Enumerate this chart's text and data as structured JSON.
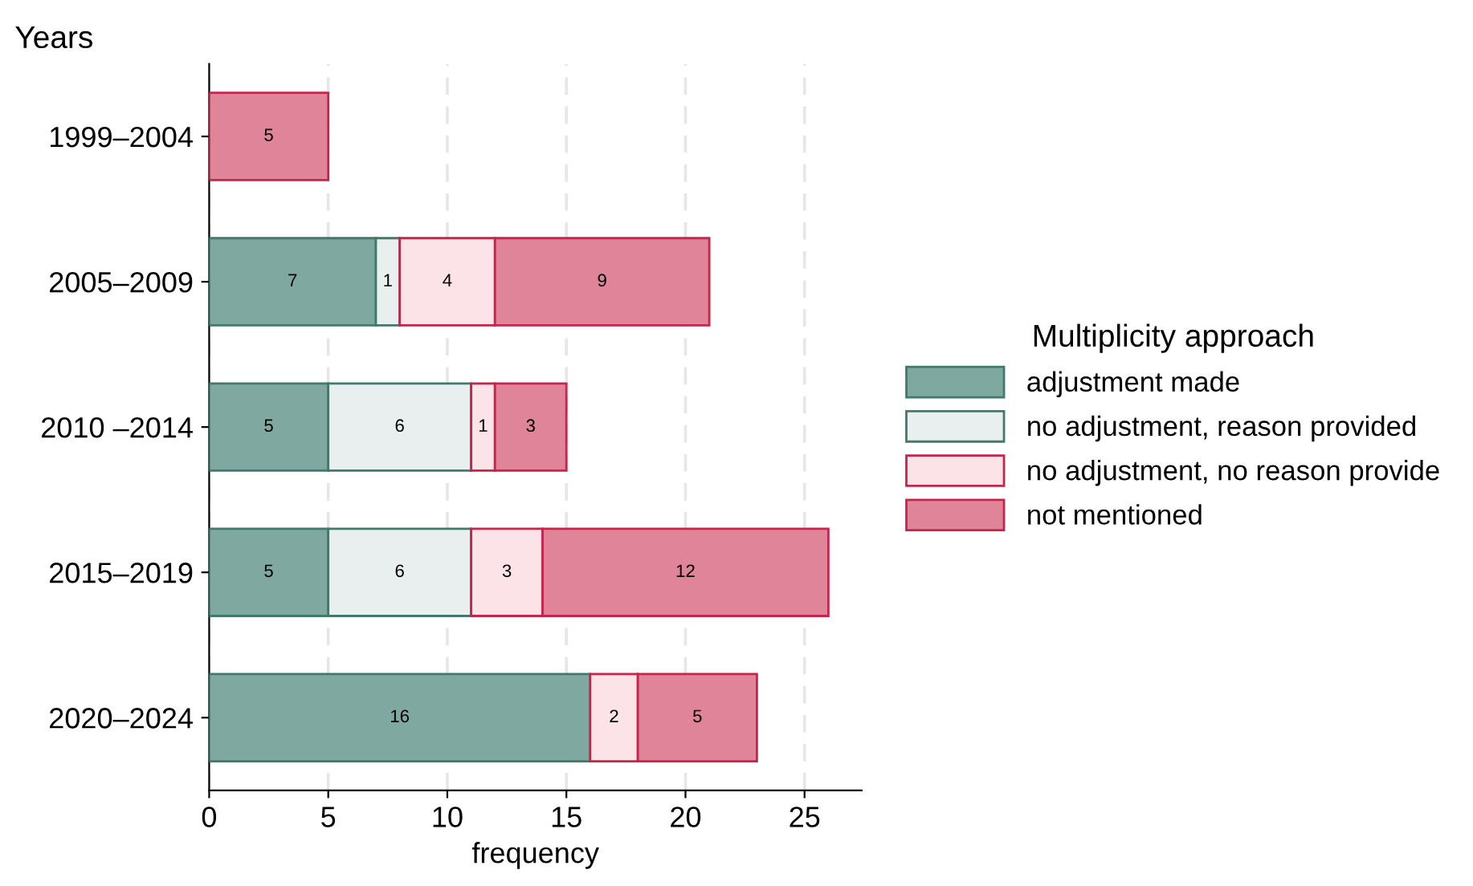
{
  "chart_data": {
    "type": "bar",
    "orientation": "horizontal",
    "stacked": true,
    "ylabel": "Years",
    "xlabel": "frequency",
    "legend_title": "Multiplicity approach",
    "categories": [
      "1999–2004",
      "2005–2009",
      "2010 –2014",
      "2015–2019",
      "2020–2024"
    ],
    "series": [
      {
        "name": "adjustment made",
        "color": "#7fa8a0",
        "values": [
          null,
          7,
          5,
          5,
          16
        ]
      },
      {
        "name": "no adjustment, reason provided",
        "color": "#e8efee",
        "values": [
          null,
          1,
          6,
          6,
          null
        ]
      },
      {
        "name": "no adjustment, no reason provide",
        "color": "#fbe3e8",
        "values": [
          null,
          4,
          1,
          3,
          2
        ]
      },
      {
        "name": "not mentioned",
        "color": "#e0849a",
        "values": [
          5,
          9,
          3,
          12,
          5
        ]
      }
    ],
    "xlim": [
      0,
      27.4
    ],
    "xticks": [
      0,
      5,
      10,
      15,
      20,
      25
    ],
    "grid": "x",
    "legend": "right",
    "data_labels": true
  }
}
